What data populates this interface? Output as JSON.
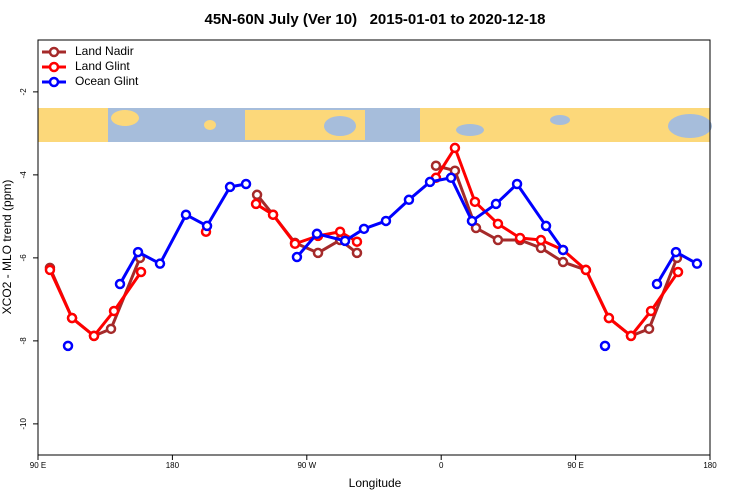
{
  "chart_data": {
    "type": "line",
    "title": "45N-60N July (Ver 10)   2015-01-01 to 2020-12-18",
    "xlabel": "Longitude",
    "ylabel": "XCO2 - MLO trend (ppm)",
    "xlim": [
      90,
      540
    ],
    "ylim": [
      -10.75,
      -0.75
    ],
    "xticks": [
      {
        "value": 90,
        "label": "90 E"
      },
      180,
      {
        "value": 270,
        "label": "90 W"
      },
      {
        "value": 360,
        "label": "0"
      },
      {
        "value": 450,
        "label": "90 E"
      },
      {
        "value": 540,
        "label": "180"
      }
    ],
    "yticks": [
      -2,
      -4,
      -6,
      -8,
      -10
    ],
    "grid": false,
    "legend": "top-left",
    "series": [
      {
        "name": "Land Nadir",
        "color": "#a52a2a",
        "x": [
          98,
          112.8,
          127.5,
          138.9,
          158.3,
          null,
          236.7,
          247.4,
          262.1,
          277.5,
          292.3,
          303.6,
          null,
          356.5,
          369.2,
          383.3,
          398.0,
          412.8,
          426.8,
          441.6,
          456.9,
          472.3,
          487.1,
          499.2,
          517.9
        ],
        "values": [
          -6.24,
          -7.45,
          -7.88,
          -7.71,
          -6.0,
          null,
          -4.48,
          -4.96,
          -5.64,
          -5.88,
          -5.57,
          -5.88,
          null,
          -3.78,
          -3.9,
          -5.28,
          -5.57,
          -5.57,
          -5.76,
          -6.1,
          -6.29,
          -7.45,
          -7.88,
          -7.71,
          -6.0
        ]
      },
      {
        "name": "Land Glint",
        "color": "#ff0000",
        "x": [
          98,
          112.8,
          127.5,
          140.9,
          159.0,
          null,
          202.5,
          null,
          236.0,
          247.4,
          262.1,
          277.5,
          292.3,
          303.6,
          null,
          356.5,
          369.2,
          382.6,
          398.0,
          412.8,
          426.8,
          441.6,
          456.9,
          472.3,
          487.1,
          500.5,
          518.6
        ],
        "values": [
          -6.29,
          -7.45,
          -7.88,
          -7.28,
          -6.34,
          null,
          -5.37,
          null,
          -4.7,
          -4.96,
          -5.66,
          -5.47,
          -5.37,
          -5.61,
          null,
          -4.07,
          -3.35,
          -4.65,
          -5.18,
          -5.52,
          -5.57,
          -5.81,
          -6.29,
          -7.45,
          -7.88,
          -7.28,
          -6.34
        ]
      },
      {
        "name": "Ocean Glint",
        "color": "#0000ff",
        "x": [
          110.1,
          null,
          144.9,
          157.0,
          171.7,
          189.1,
          203.2,
          218.6,
          229.3,
          null,
          263.4,
          276.8,
          295.6,
          308.3,
          323.0,
          338.4,
          352.5,
          366.6,
          380.6,
          396.7,
          410.8,
          430.2,
          441.6,
          null,
          469.7,
          null,
          504.5,
          517.2,
          531.3
        ],
        "values": [
          -8.12,
          null,
          -6.63,
          -5.86,
          -6.14,
          -4.96,
          -5.23,
          -4.29,
          -4.22,
          null,
          -5.98,
          -5.42,
          -5.59,
          -5.3,
          -5.11,
          -4.6,
          -4.17,
          -4.07,
          -5.11,
          -4.7,
          -4.22,
          -5.23,
          -5.81,
          null,
          -8.12,
          null,
          -6.63,
          -5.86,
          -6.14
        ]
      }
    ]
  }
}
